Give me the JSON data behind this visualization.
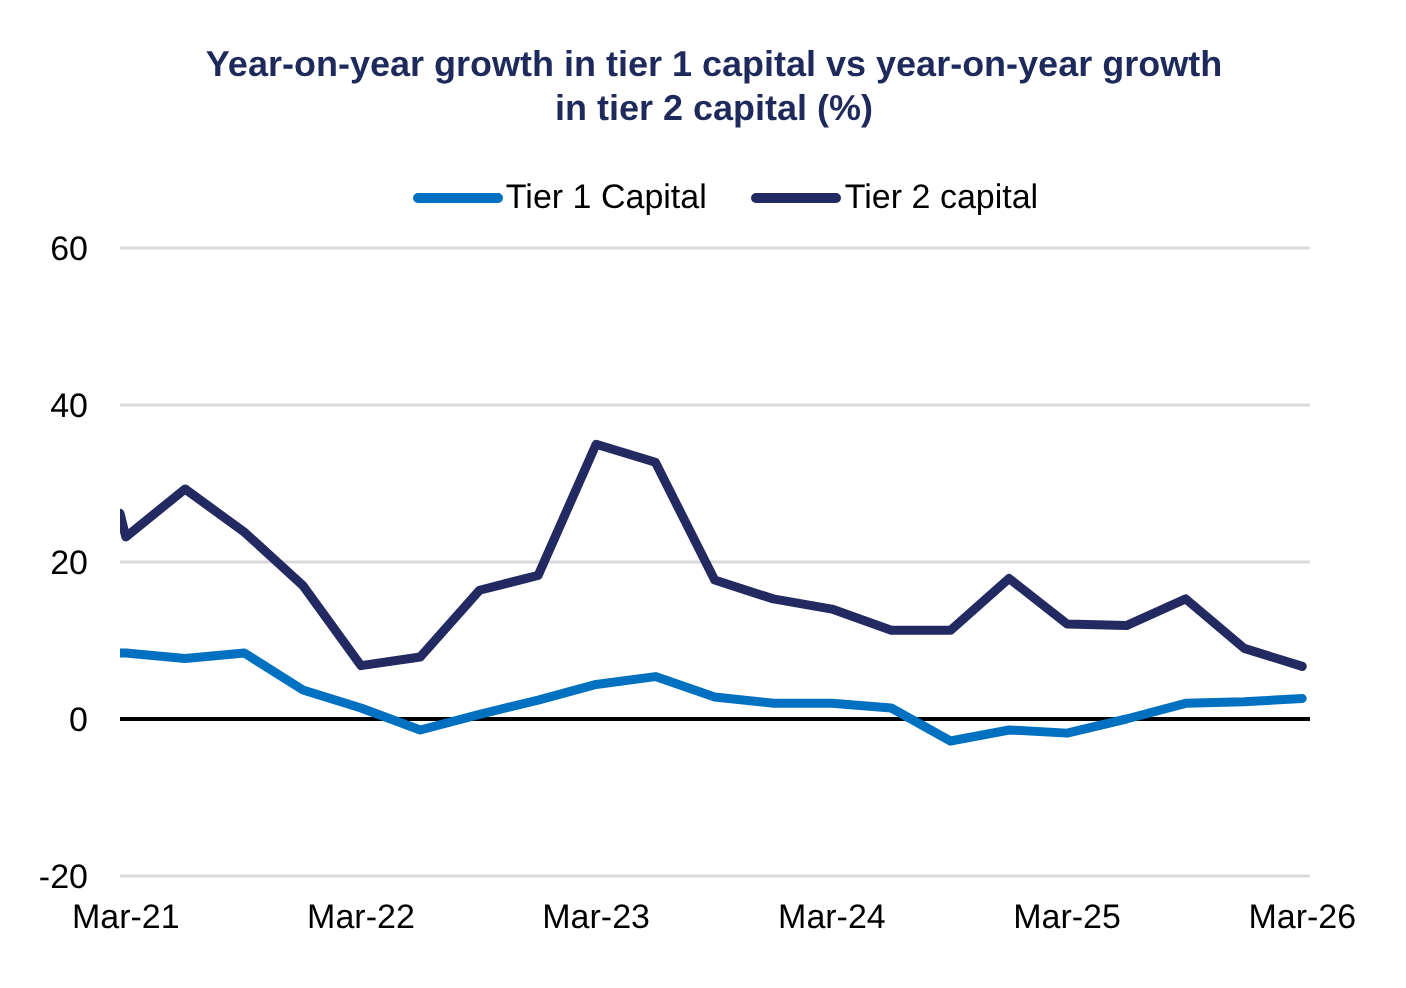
{
  "chart_data": {
    "type": "line",
    "title": "Year-on-year growth in tier 1 capital vs year-on-year growth in tier 2 capital (%)",
    "x": [
      "2021-02-20",
      "2021-03",
      "2021-06",
      "2021-09",
      "2021-12",
      "2022-03",
      "2022-06",
      "2022-09",
      "2022-12",
      "2023-03",
      "2023-06",
      "2023-09",
      "2023-12",
      "2024-03",
      "2024-06",
      "2024-09",
      "2024-12",
      "2025-03",
      "2025-06",
      "2025-09",
      "2025-12",
      "2026-03"
    ],
    "series": [
      {
        "name": "Tier 1 Capital",
        "color": "#0070c0",
        "values": [
          8.4,
          8.4,
          7.7,
          8.4,
          3.7,
          1.4,
          -1.4,
          0.6,
          2.4,
          4.4,
          5.4,
          2.8,
          2.0,
          2.0,
          1.4,
          -2.8,
          -1.4,
          -1.8,
          0.0,
          2.0,
          2.2,
          2.6
        ]
      },
      {
        "name": "Tier 2 capital",
        "color": "#232a62",
        "values": [
          26.2,
          23.2,
          29.3,
          23.8,
          17.0,
          6.8,
          7.9,
          16.4,
          18.3,
          35.0,
          32.7,
          17.7,
          15.3,
          14.0,
          11.3,
          11.3,
          17.9,
          12.1,
          11.9,
          15.3,
          9.0,
          6.7
        ]
      }
    ],
    "xlim": [
      "2021-02-20",
      "2026-03-13"
    ],
    "xticks": [
      {
        "value": "2021-03",
        "label": "Mar-21"
      },
      {
        "value": "2022-03",
        "label": "Mar-22"
      },
      {
        "value": "2023-03",
        "label": "Mar-23"
      },
      {
        "value": "2024-03",
        "label": "Mar-24"
      },
      {
        "value": "2025-03",
        "label": "Mar-25"
      },
      {
        "value": "2026-03",
        "label": "Mar-26"
      }
    ],
    "ylim": [
      -20,
      60
    ],
    "yticks": [
      -20,
      0,
      20,
      40,
      60
    ],
    "grid": "y",
    "legend": "top",
    "marker": "none",
    "line_style": "solid",
    "ref_lines": [
      {
        "axis": "y",
        "value": 0,
        "color": "#000000"
      }
    ]
  }
}
